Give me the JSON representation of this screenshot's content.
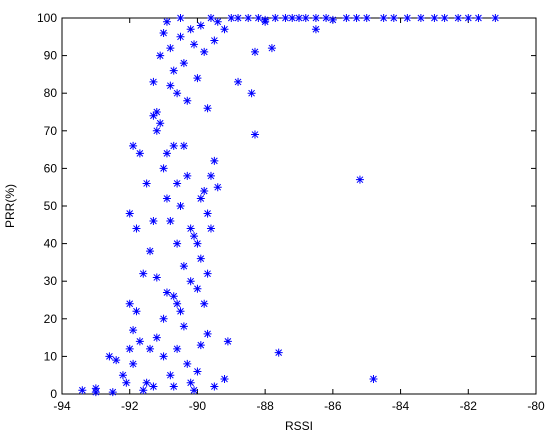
{
  "chart_data": {
    "type": "scatter",
    "xlabel": "RSSI",
    "ylabel": "PRR(%)",
    "color": "#0000ff",
    "xlim": [
      -94,
      -80
    ],
    "ylim": [
      0,
      100
    ],
    "xticks": [
      -94,
      -92,
      -90,
      -88,
      -86,
      -84,
      -82,
      -80
    ],
    "yticks": [
      0,
      10,
      20,
      30,
      40,
      50,
      60,
      70,
      80,
      90,
      100
    ],
    "x": [
      -93.4,
      -93,
      -93,
      -92.5,
      -92.6,
      -92.4,
      -92.2,
      -92.1,
      -92,
      -91.9,
      -91.9,
      -92,
      -91.8,
      -91.7,
      -91.6,
      -91.5,
      -91.3,
      -91.2,
      -91,
      -91,
      -90.9,
      -90.8,
      -90.7,
      -90.6,
      -90.5,
      -90.4,
      -90.3,
      -90.2,
      -90.1,
      -90,
      -89.9,
      -89.8,
      -89.7,
      -89.5,
      -89.2,
      -89.1,
      -87.6,
      -84.8,
      -91.4,
      -90.6,
      -92,
      -91.8,
      -91.7,
      -91.5,
      -91.4,
      -91.3,
      -91.2,
      -91.1,
      -91,
      -90.9,
      -90.8,
      -90.7,
      -90.6,
      -90.5,
      -90.4,
      -90.3,
      -90.2,
      -90.1,
      -90,
      -89.9,
      -89.8,
      -89.7,
      -89.6,
      -89.5,
      -89.4,
      -91.9,
      -91.3,
      -90.7,
      -90.2,
      -89.7,
      -88.3,
      -85.2,
      -91.6,
      -90.9,
      -90,
      -89.6,
      -91.2,
      -90.4,
      -89.9,
      -90.6,
      -91.3,
      -91.1,
      -91,
      -90.9,
      -90.8,
      -90.7,
      -90.6,
      -90.5,
      -90.4,
      -90.3,
      -90.2,
      -90.1,
      -90,
      -89.9,
      -89.8,
      -89.7,
      -89.6,
      -89.5,
      -89.4,
      -89.2,
      -89,
      -88.8,
      -88.4,
      -88.3,
      -87.8,
      -88,
      -86.5,
      -90.5,
      -90.8,
      -91.2,
      -88.8,
      -88.5,
      -88.2,
      -88,
      -87.7,
      -87.4,
      -87.2,
      -87,
      -86.8,
      -86.5,
      -86.2,
      -86,
      -85.6,
      -85.3,
      -85,
      -84.5,
      -84.2,
      -83.8,
      -83.4,
      -83,
      -82.7,
      -82.3,
      -82,
      -81.7,
      -81.2
    ],
    "y": [
      1,
      0.5,
      1.5,
      0.5,
      10,
      9,
      5,
      3,
      12,
      8,
      17,
      24,
      22,
      14,
      1,
      3,
      2,
      15,
      20,
      10,
      27,
      5,
      2,
      12,
      22,
      18,
      8,
      3,
      1,
      6,
      13,
      24,
      16,
      2,
      4,
      14,
      11,
      4,
      12,
      24,
      48,
      44,
      64,
      56,
      38,
      46,
      31,
      72,
      60,
      52,
      46,
      66,
      40,
      50,
      34,
      58,
      44,
      42,
      28,
      36,
      54,
      48,
      58,
      62,
      55,
      66,
      74,
      26,
      30,
      32,
      69,
      57,
      32,
      64,
      40,
      44,
      70,
      66,
      52,
      56,
      83,
      90,
      96,
      99,
      92,
      86,
      80,
      95,
      88,
      78,
      97,
      93,
      84,
      98,
      91,
      76,
      100,
      94,
      99,
      97,
      100,
      83,
      80,
      91,
      92,
      99,
      97,
      100,
      82,
      75,
      100,
      100,
      100,
      99.5,
      100,
      100,
      100,
      100,
      100,
      100,
      100,
      99.5,
      100,
      100,
      100,
      100,
      100,
      100,
      100,
      100,
      100,
      100,
      100,
      100,
      100
    ]
  }
}
